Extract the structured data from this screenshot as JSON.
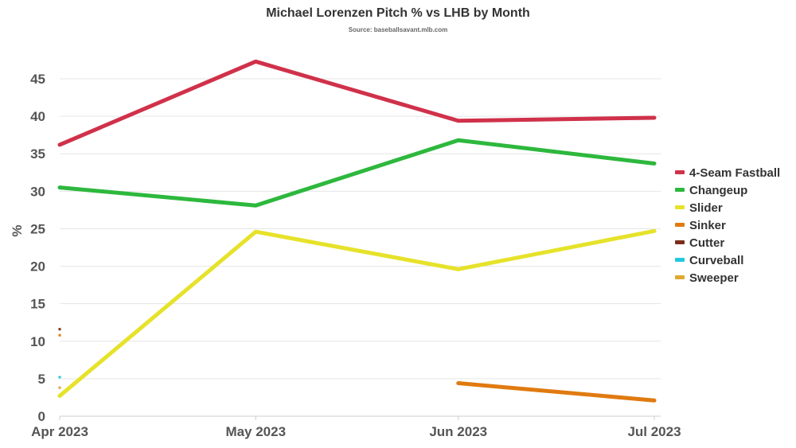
{
  "chart_data": {
    "type": "line",
    "title": "Michael Lorenzen Pitch % vs LHB by Month",
    "subtitle": "Source: baseballsavant.mlb.com",
    "xlabel": "",
    "ylabel": "%",
    "x": [
      "2023-04-01",
      "2023-05-01",
      "2023-06-01",
      "2023-07-01"
    ],
    "x_tick_labels": [
      "Apr 2023",
      "May 2023",
      "Jun 2023",
      "Jul 2023"
    ],
    "ylim": [
      0,
      47.5
    ],
    "y_ticks": [
      0,
      5,
      10,
      15,
      20,
      25,
      30,
      35,
      40,
      45
    ],
    "grid": true,
    "legend_position": "right",
    "series": [
      {
        "name": "4-Seam Fastball",
        "color": "#d0314a",
        "values": [
          36.2,
          47.3,
          39.4,
          39.8
        ]
      },
      {
        "name": "Changeup",
        "color": "#2db83d",
        "values": [
          30.5,
          28.1,
          36.8,
          33.7
        ]
      },
      {
        "name": "Slider",
        "color": "#e6e22a",
        "values": [
          2.7,
          24.6,
          19.6,
          24.7
        ]
      },
      {
        "name": "Sinker",
        "color": "#e07a10",
        "values": [
          10.8,
          null,
          4.4,
          2.1
        ]
      },
      {
        "name": "Cutter",
        "color": "#7b2d1a",
        "values": [
          11.6,
          null,
          null,
          null
        ]
      },
      {
        "name": "Curveball",
        "color": "#22c8e0",
        "values": [
          5.2,
          null,
          null,
          null
        ]
      },
      {
        "name": "Sweeper",
        "color": "#e0a830",
        "values": [
          3.8,
          null,
          null,
          null
        ]
      }
    ]
  }
}
